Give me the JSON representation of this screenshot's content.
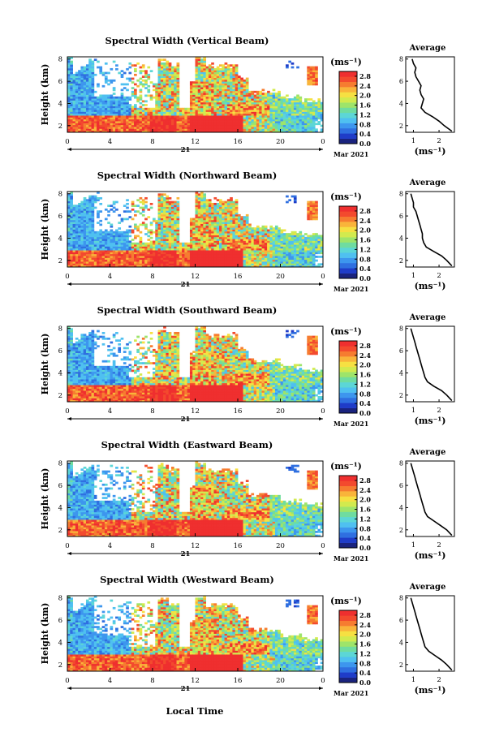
{
  "figure": {
    "xlabel": "Local Time",
    "date_label": "Mar 2021",
    "day_label": "21",
    "cbar_unit": "(ms⁻¹)",
    "avg_title": "Average",
    "avg_xlabel": "(ms⁻¹)"
  },
  "colors": {
    "colormap": [
      "#1a237e",
      "#1f3cc8",
      "#2f6fe0",
      "#3d96ee",
      "#4fc0f0",
      "#5cd6d6",
      "#6fdca0",
      "#9ee46a",
      "#d2ea4e",
      "#f6e042",
      "#f9b43a",
      "#f67c30",
      "#f34a2e",
      "#ef2f2f"
    ]
  },
  "chart_data": [
    {
      "type": "heatmap",
      "title": "Spectral Width (Vertical Beam)",
      "ylabel": "Height (km)",
      "x_ticks": [
        "0",
        "4",
        "8",
        "12",
        "16",
        "20",
        "0"
      ],
      "y_ticks": [
        "2",
        "4",
        "6",
        "8"
      ],
      "xlim": [
        0,
        24
      ],
      "ylim": [
        1.4,
        8.2
      ],
      "cbar_ticks": [
        "0.0",
        "0.4",
        "0.8",
        "1.2",
        "1.6",
        "2.0",
        "2.4",
        "2.8"
      ],
      "clim": [
        0.0,
        3.0
      ],
      "avg": {
        "xticks": [
          "1",
          "2"
        ],
        "xlim": [
          0.7,
          2.6
        ],
        "profile_heights": [
          1.5,
          2.0,
          2.4,
          2.8,
          3.2,
          3.6,
          4.0,
          4.4,
          4.8,
          5.2,
          5.6,
          6.0,
          6.4,
          6.8,
          7.2,
          7.6,
          8.0
        ],
        "profile_values": [
          2.5,
          2.2,
          2.0,
          1.75,
          1.45,
          1.3,
          1.35,
          1.4,
          1.3,
          1.25,
          1.3,
          1.2,
          1.1,
          1.05,
          1.1,
          1.0,
          0.95
        ]
      }
    },
    {
      "type": "heatmap",
      "title": "Spectral Width (Northward Beam)",
      "ylabel": "Height (km)",
      "x_ticks": [
        "0",
        "4",
        "8",
        "12",
        "16",
        "20",
        "0"
      ],
      "y_ticks": [
        "2",
        "4",
        "6",
        "8"
      ],
      "xlim": [
        0,
        24
      ],
      "ylim": [
        1.4,
        8.2
      ],
      "cbar_ticks": [
        "0.0",
        "0.4",
        "0.8",
        "1.2",
        "1.6",
        "2.0",
        "2.4",
        "2.8"
      ],
      "clim": [
        0.0,
        3.0
      ],
      "avg": {
        "xticks": [
          "1",
          "2"
        ],
        "xlim": [
          0.7,
          2.6
        ],
        "profile_heights": [
          1.5,
          2.0,
          2.4,
          2.8,
          3.2,
          3.6,
          4.0,
          4.4,
          4.8,
          5.2,
          5.6,
          6.0,
          6.4,
          6.8,
          7.2,
          7.6,
          8.0
        ],
        "profile_values": [
          2.5,
          2.3,
          2.1,
          1.8,
          1.5,
          1.4,
          1.35,
          1.35,
          1.3,
          1.25,
          1.2,
          1.15,
          1.1,
          1.0,
          1.0,
          0.95,
          0.9
        ]
      }
    },
    {
      "type": "heatmap",
      "title": "Spectral Width (Southward Beam)",
      "ylabel": "Height (km)",
      "x_ticks": [
        "0",
        "4",
        "8",
        "12",
        "16",
        "20",
        "0"
      ],
      "y_ticks": [
        "2",
        "4",
        "6",
        "8"
      ],
      "xlim": [
        0,
        24
      ],
      "ylim": [
        1.4,
        8.2
      ],
      "cbar_ticks": [
        "0.0",
        "0.4",
        "0.8",
        "1.2",
        "1.6",
        "2.0",
        "2.4",
        "2.8"
      ],
      "clim": [
        0.0,
        3.0
      ],
      "avg": {
        "xticks": [
          "1",
          "2"
        ],
        "xlim": [
          0.7,
          2.6
        ],
        "profile_heights": [
          1.5,
          2.0,
          2.4,
          2.8,
          3.2,
          3.6,
          4.0,
          4.4,
          4.8,
          5.2,
          5.6,
          6.0,
          6.4,
          6.8,
          7.2,
          7.6,
          8.0
        ],
        "profile_values": [
          2.5,
          2.3,
          2.1,
          1.8,
          1.55,
          1.45,
          1.4,
          1.35,
          1.3,
          1.25,
          1.2,
          1.15,
          1.1,
          1.05,
          1.0,
          0.95,
          0.9
        ]
      }
    },
    {
      "type": "heatmap",
      "title": "Spectral Width (Eastward Beam)",
      "ylabel": "Height (km)",
      "x_ticks": [
        "0",
        "4",
        "8",
        "12",
        "16",
        "20",
        "0"
      ],
      "y_ticks": [
        "2",
        "4",
        "6",
        "8"
      ],
      "xlim": [
        0,
        24
      ],
      "ylim": [
        1.4,
        8.2
      ],
      "cbar_ticks": [
        "0.0",
        "0.4",
        "0.8",
        "1.2",
        "1.6",
        "2.0",
        "2.4",
        "2.8"
      ],
      "clim": [
        0.0,
        3.0
      ],
      "avg": {
        "xticks": [
          "1",
          "2"
        ],
        "xlim": [
          0.7,
          2.6
        ],
        "profile_heights": [
          1.5,
          2.0,
          2.4,
          2.8,
          3.2,
          3.6,
          4.0,
          4.4,
          4.8,
          5.2,
          5.6,
          6.0,
          6.4,
          6.8,
          7.2,
          7.6,
          8.0
        ],
        "profile_values": [
          2.5,
          2.3,
          2.05,
          1.8,
          1.55,
          1.45,
          1.4,
          1.35,
          1.3,
          1.25,
          1.2,
          1.15,
          1.1,
          1.05,
          1.0,
          0.95,
          0.9
        ]
      }
    },
    {
      "type": "heatmap",
      "title": "Spectral Width (Westward Beam)",
      "ylabel": "Height (km)",
      "x_ticks": [
        "0",
        "4",
        "8",
        "12",
        "16",
        "20",
        "0"
      ],
      "y_ticks": [
        "2",
        "4",
        "6",
        "8"
      ],
      "xlim": [
        0,
        24
      ],
      "ylim": [
        1.4,
        8.2
      ],
      "cbar_ticks": [
        "0.0",
        "0.4",
        "0.8",
        "1.2",
        "1.6",
        "2.0",
        "2.4",
        "2.8"
      ],
      "clim": [
        0.0,
        3.0
      ],
      "avg": {
        "xticks": [
          "1",
          "2"
        ],
        "xlim": [
          0.7,
          2.6
        ],
        "profile_heights": [
          1.5,
          2.0,
          2.4,
          2.8,
          3.2,
          3.6,
          4.0,
          4.4,
          4.8,
          5.2,
          5.6,
          6.0,
          6.4,
          6.8,
          7.2,
          7.6,
          8.0
        ],
        "profile_values": [
          2.5,
          2.3,
          2.1,
          1.85,
          1.6,
          1.45,
          1.4,
          1.35,
          1.3,
          1.25,
          1.2,
          1.15,
          1.1,
          1.05,
          1.0,
          0.95,
          0.9
        ]
      }
    }
  ]
}
